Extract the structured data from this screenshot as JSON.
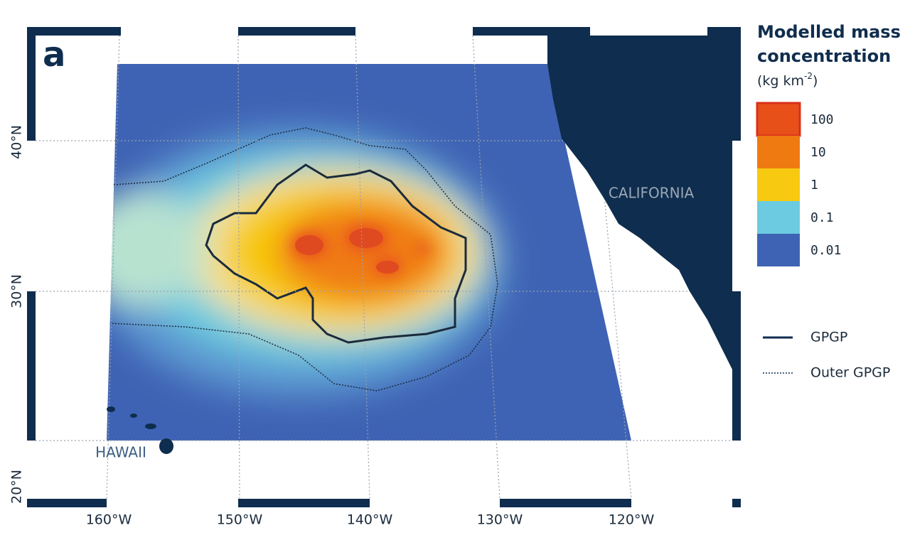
{
  "panel_label": "a",
  "map": {
    "longitude_labels": [
      "160°W",
      "150°W",
      "140°W",
      "130°W",
      "120°W"
    ],
    "latitude_labels": [
      "40°N",
      "30°N",
      "20°N"
    ],
    "place_labels": {
      "california": "CALIFORNIA",
      "hawaii": "HAWAII"
    }
  },
  "legend": {
    "title": "Modelled mass concentration",
    "unit": {
      "base": "(kg km",
      "sup": "-2",
      "close": ")"
    },
    "items": [
      {
        "label": "100",
        "color": "#e8501a"
      },
      {
        "label": "10",
        "color": "#f07a12"
      },
      {
        "label": "1",
        "color": "#f7c910"
      },
      {
        "label": "0.1",
        "color": "#6ccbe0"
      },
      {
        "label": "0.01",
        "color": "#3f63b4"
      }
    ],
    "lines": [
      {
        "label": "GPGP",
        "style": "solid"
      },
      {
        "label": "Outer GPGP",
        "style": "dotted"
      }
    ]
  }
}
